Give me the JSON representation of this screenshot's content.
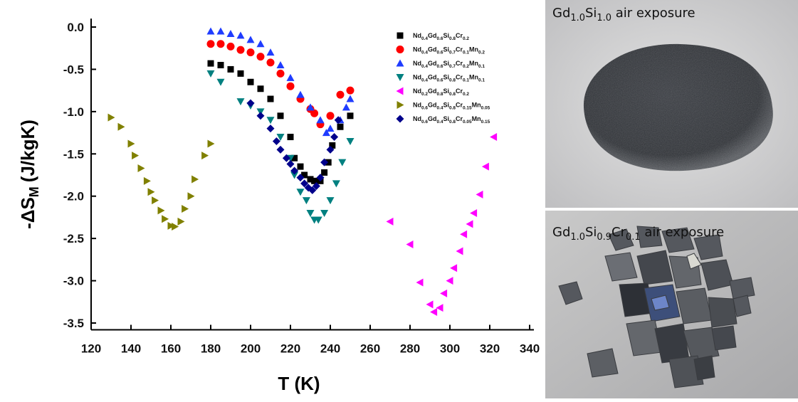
{
  "chart_data": {
    "type": "scatter",
    "y_label": {
      "main": "-ΔS",
      "sub": "M",
      "unit": "(J/kgK)"
    },
    "x_label": "T (K)",
    "xlim": [
      120,
      340
    ],
    "ylim": [
      -3.58,
      0.1
    ],
    "xticks": [
      120,
      140,
      160,
      180,
      200,
      220,
      240,
      260,
      280,
      300,
      320,
      340
    ],
    "yticks": [
      {
        "value": 0,
        "label": "0.0"
      },
      -0.5,
      {
        "value": -1,
        "label": "-1.0"
      },
      -1.5,
      {
        "value": -2,
        "label": "-2.0"
      },
      -2.5,
      {
        "value": -3,
        "label": "-3.0"
      },
      -3.5
    ],
    "series": [
      {
        "name": "Nd0.4Gd0.6Si0.8Cr0.2",
        "color": "#000000",
        "marker": "square",
        "x": [
          180,
          185,
          190,
          195,
          200,
          205,
          210,
          215,
          220,
          222,
          225,
          227,
          230,
          232,
          235,
          237,
          239,
          241,
          245,
          250
        ],
        "values": [
          -0.43,
          -0.45,
          -0.5,
          -0.55,
          -0.65,
          -0.73,
          -0.85,
          -1.05,
          -1.3,
          -1.55,
          -1.65,
          -1.75,
          -1.8,
          -1.82,
          -1.82,
          -1.72,
          -1.6,
          -1.4,
          -1.18,
          -1.05
        ]
      },
      {
        "name": "Nd0.4Gd0.6Si0.7Cr0.1Mn0.2",
        "color": "#ff0000",
        "marker": "circle",
        "x": [
          180,
          185,
          190,
          195,
          200,
          205,
          210,
          215,
          220,
          225,
          230,
          232,
          235,
          240,
          245,
          250
        ],
        "values": [
          -0.2,
          -0.2,
          -0.23,
          -0.27,
          -0.3,
          -0.35,
          -0.42,
          -0.55,
          -0.7,
          -0.85,
          -0.97,
          -1.02,
          -1.15,
          -1.05,
          -0.8,
          -0.75
        ]
      },
      {
        "name": "Nd0.4Gd0.6Si0.7Cr0.2Mn0.1",
        "color": "#1f3cff",
        "marker": "up",
        "x": [
          180,
          185,
          190,
          195,
          200,
          205,
          210,
          215,
          220,
          225,
          230,
          235,
          238,
          240,
          245,
          248,
          250
        ],
        "values": [
          -0.05,
          -0.05,
          -0.08,
          -0.1,
          -0.15,
          -0.2,
          -0.3,
          -0.45,
          -0.6,
          -0.8,
          -0.95,
          -1.1,
          -1.25,
          -1.2,
          -1.1,
          -0.95,
          -0.85
        ]
      },
      {
        "name": "Nd0.4Gd0.6Si0.8Cr0.1Mn0.1",
        "color": "#008080",
        "marker": "down",
        "x": [
          180,
          185,
          195,
          200,
          205,
          210,
          215,
          220,
          222,
          225,
          228,
          230,
          232,
          234,
          237,
          240,
          243,
          246,
          250
        ],
        "values": [
          -0.55,
          -0.65,
          -0.88,
          -0.93,
          -1.0,
          -1.1,
          -1.3,
          -1.55,
          -1.75,
          -1.95,
          -2.05,
          -2.2,
          -2.28,
          -2.28,
          -2.2,
          -2.05,
          -1.85,
          -1.6,
          -1.35
        ]
      },
      {
        "name": "Nd0.2Gd0.8Si0.8Cr0.2",
        "color": "#ff00ff",
        "marker": "left",
        "x": [
          270,
          280,
          285,
          290,
          292,
          295,
          297,
          300,
          302,
          305,
          307,
          310,
          312,
          315,
          318,
          322
        ],
        "values": [
          -2.3,
          -2.57,
          -3.02,
          -3.28,
          -3.37,
          -3.32,
          -3.15,
          -3.0,
          -2.85,
          -2.65,
          -2.45,
          -2.33,
          -2.2,
          -1.98,
          -1.65,
          -1.3
        ]
      },
      {
        "name": "Nd0.6Gd0.4Si0.8Cr0.15Mn0.05",
        "color": "#808000",
        "marker": "right",
        "x": [
          130,
          135,
          140,
          142,
          145,
          148,
          150,
          152,
          155,
          157,
          160,
          162,
          165,
          167,
          170,
          172,
          177,
          180
        ],
        "values": [
          -1.07,
          -1.18,
          -1.38,
          -1.52,
          -1.67,
          -1.82,
          -1.95,
          -2.05,
          -2.17,
          -2.27,
          -2.35,
          -2.36,
          -2.3,
          -2.15,
          -2.0,
          -1.8,
          -1.52,
          -1.38
        ]
      },
      {
        "name": "Nd0.6Gd0.4Si0.8Cr0.05Mn0.15",
        "color": "#00008b",
        "marker": "diamond",
        "x": [
          200,
          205,
          210,
          213,
          215,
          218,
          220,
          222,
          225,
          227,
          229,
          231,
          233,
          235,
          237,
          240,
          242,
          244
        ],
        "values": [
          -0.9,
          -1.05,
          -1.2,
          -1.35,
          -1.45,
          -1.55,
          -1.62,
          -1.7,
          -1.78,
          -1.85,
          -1.9,
          -1.93,
          -1.88,
          -1.78,
          -1.6,
          -1.45,
          -1.3,
          -1.1
        ]
      }
    ]
  },
  "photos": [
    {
      "caption": "Gd1.0Si1.0 air exposure"
    },
    {
      "caption": "Gd1.0Si0.9Cr0.1 air exposure"
    }
  ]
}
